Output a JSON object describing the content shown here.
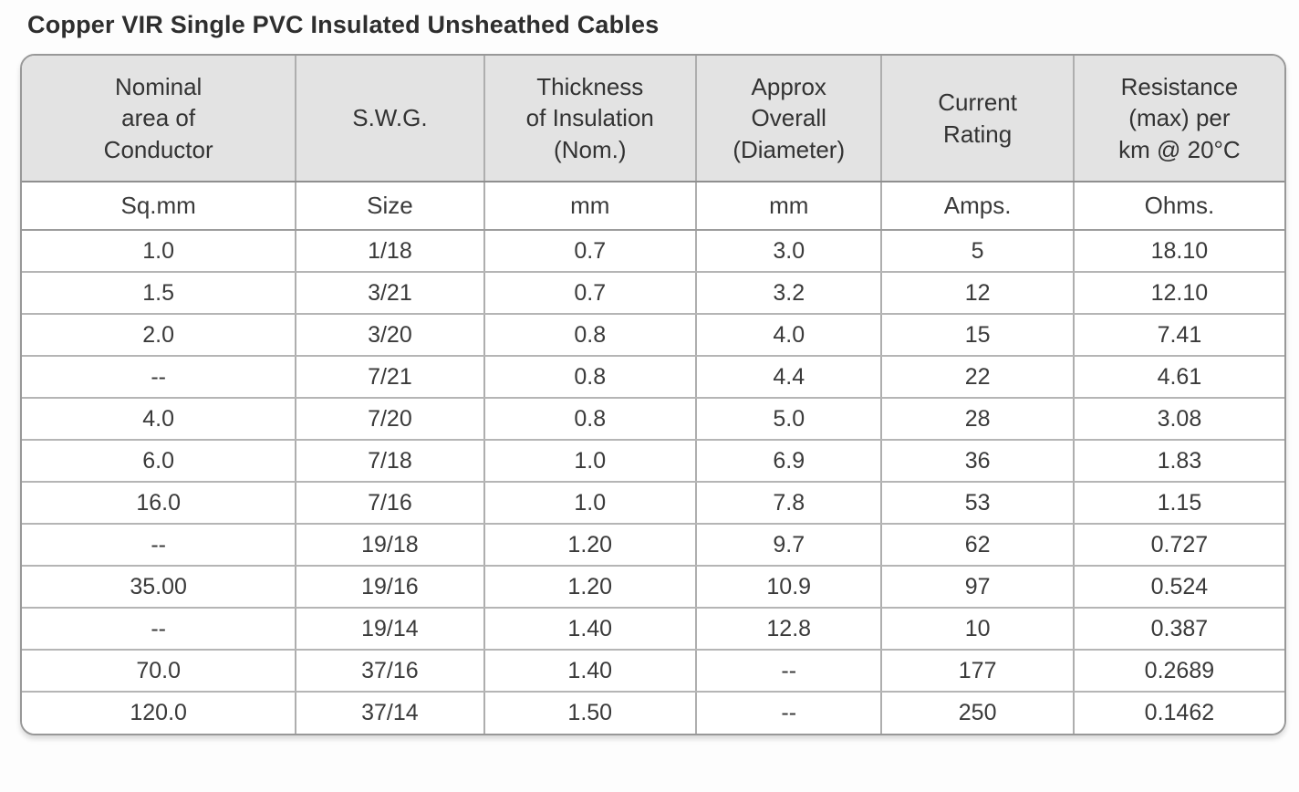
{
  "title": "Copper VIR Single PVC Insulated Unsheathed Cables",
  "table": {
    "headers": [
      {
        "lines": [
          "Nominal",
          "area of",
          "Conductor"
        ]
      },
      {
        "lines": [
          "S.W.G."
        ]
      },
      {
        "lines": [
          "Thickness",
          "of Insulation",
          "(Nom.)"
        ]
      },
      {
        "lines": [
          "Approx",
          "Overall",
          "(Diameter)"
        ]
      },
      {
        "lines": [
          "Current",
          "Rating"
        ]
      },
      {
        "lines": [
          "Resistance",
          "(max) per",
          "km @ 20°C"
        ]
      }
    ],
    "units": [
      "Sq.mm",
      "Size",
      "mm",
      "mm",
      "Amps.",
      "Ohms."
    ],
    "rows": [
      [
        "1.0",
        "1/18",
        "0.7",
        "3.0",
        "5",
        "18.10"
      ],
      [
        "1.5",
        "3/21",
        "0.7",
        "3.2",
        "12",
        "12.10"
      ],
      [
        "2.0",
        "3/20",
        "0.8",
        "4.0",
        "15",
        "7.41"
      ],
      [
        "--",
        "7/21",
        "0.8",
        "4.4",
        "22",
        "4.61"
      ],
      [
        "4.0",
        "7/20",
        "0.8",
        "5.0",
        "28",
        "3.08"
      ],
      [
        "6.0",
        "7/18",
        "1.0",
        "6.9",
        "36",
        "1.83"
      ],
      [
        "16.0",
        "7/16",
        "1.0",
        "7.8",
        "53",
        "1.15"
      ],
      [
        "--",
        "19/18",
        "1.20",
        "9.7",
        "62",
        "0.727"
      ],
      [
        "35.00",
        "19/16",
        "1.20",
        "10.9",
        "97",
        "0.524"
      ],
      [
        "--",
        "19/14",
        "1.40",
        "12.8",
        "10",
        "0.387"
      ],
      [
        "70.0",
        "37/16",
        "1.40",
        "--",
        "177",
        "0.2689"
      ],
      [
        "120.0",
        "37/14",
        "1.50",
        "--",
        "250",
        "0.1462"
      ]
    ]
  },
  "colors": {
    "header_bg": "#e3e3e3",
    "outer_border": "#989898",
    "row_border": "#b5b5b5",
    "text": "#3a3a3a"
  }
}
